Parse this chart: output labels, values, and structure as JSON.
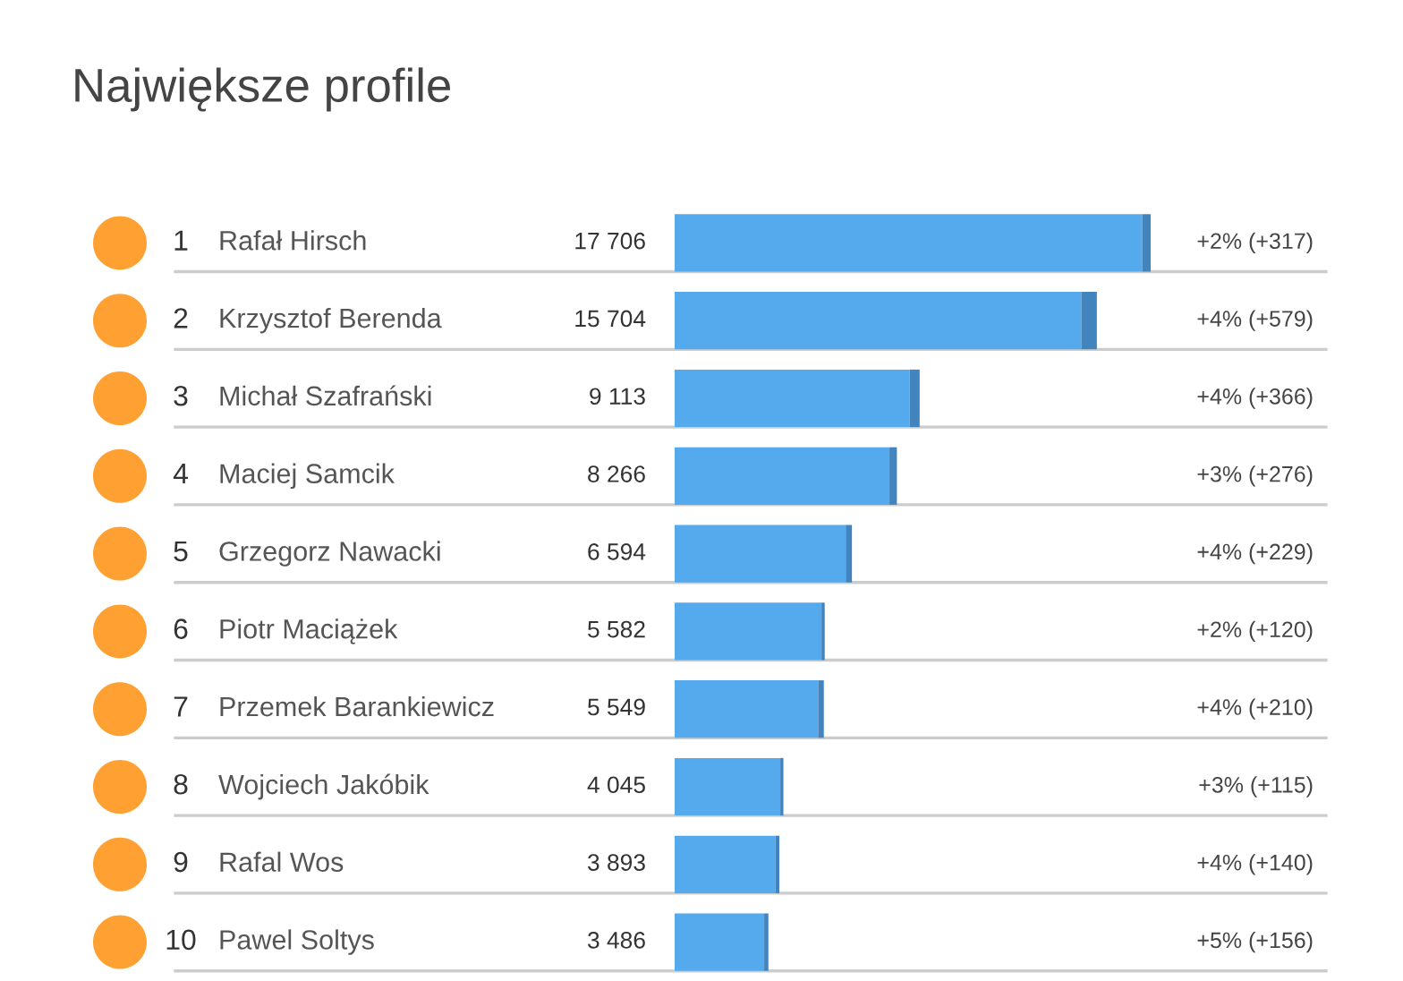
{
  "chart_data": {
    "type": "bar",
    "orientation": "horizontal",
    "stacked": true,
    "title": "Największe profile",
    "categories": [
      "Rafał Hirsch",
      "Krzysztof Berenda",
      "Michał Szafrański",
      "Maciej Samcik",
      "Grzegorz Nawacki",
      "Piotr Maciążek",
      "Przemek Barankiewicz",
      "Wojciech Jakóbik",
      "Rafal Wos",
      "Pawel Soltys"
    ],
    "series": [
      {
        "color": "#55aaee",
        "values": [
          17389,
          15125,
          8747,
          7990,
          6365,
          5462,
          5339,
          3930,
          3753,
          3330
        ]
      },
      {
        "color": "#4284bd",
        "values": [
          317,
          579,
          366,
          276,
          229,
          120,
          210,
          115,
          140,
          156
        ],
        "value_labels": [
          "+2% (+317)",
          "+4% (+579)",
          "+4% (+366)",
          "+3% (+276)",
          "+4% (+229)",
          "+2% (+120)",
          "+4% (+210)",
          "+3% (+115)",
          "+4% (+140)",
          "+5% (+156)"
        ]
      }
    ],
    "totals": [
      "17 706",
      "15 704",
      "9 113",
      "8 266",
      "6 594",
      "5 582",
      "5 549",
      "4 045",
      "3 893",
      "3 486"
    ],
    "annotations": [
      "1",
      "2",
      "3",
      "4",
      "5",
      "6",
      "7",
      "8",
      "9",
      "10"
    ],
    "grid": "y"
  }
}
